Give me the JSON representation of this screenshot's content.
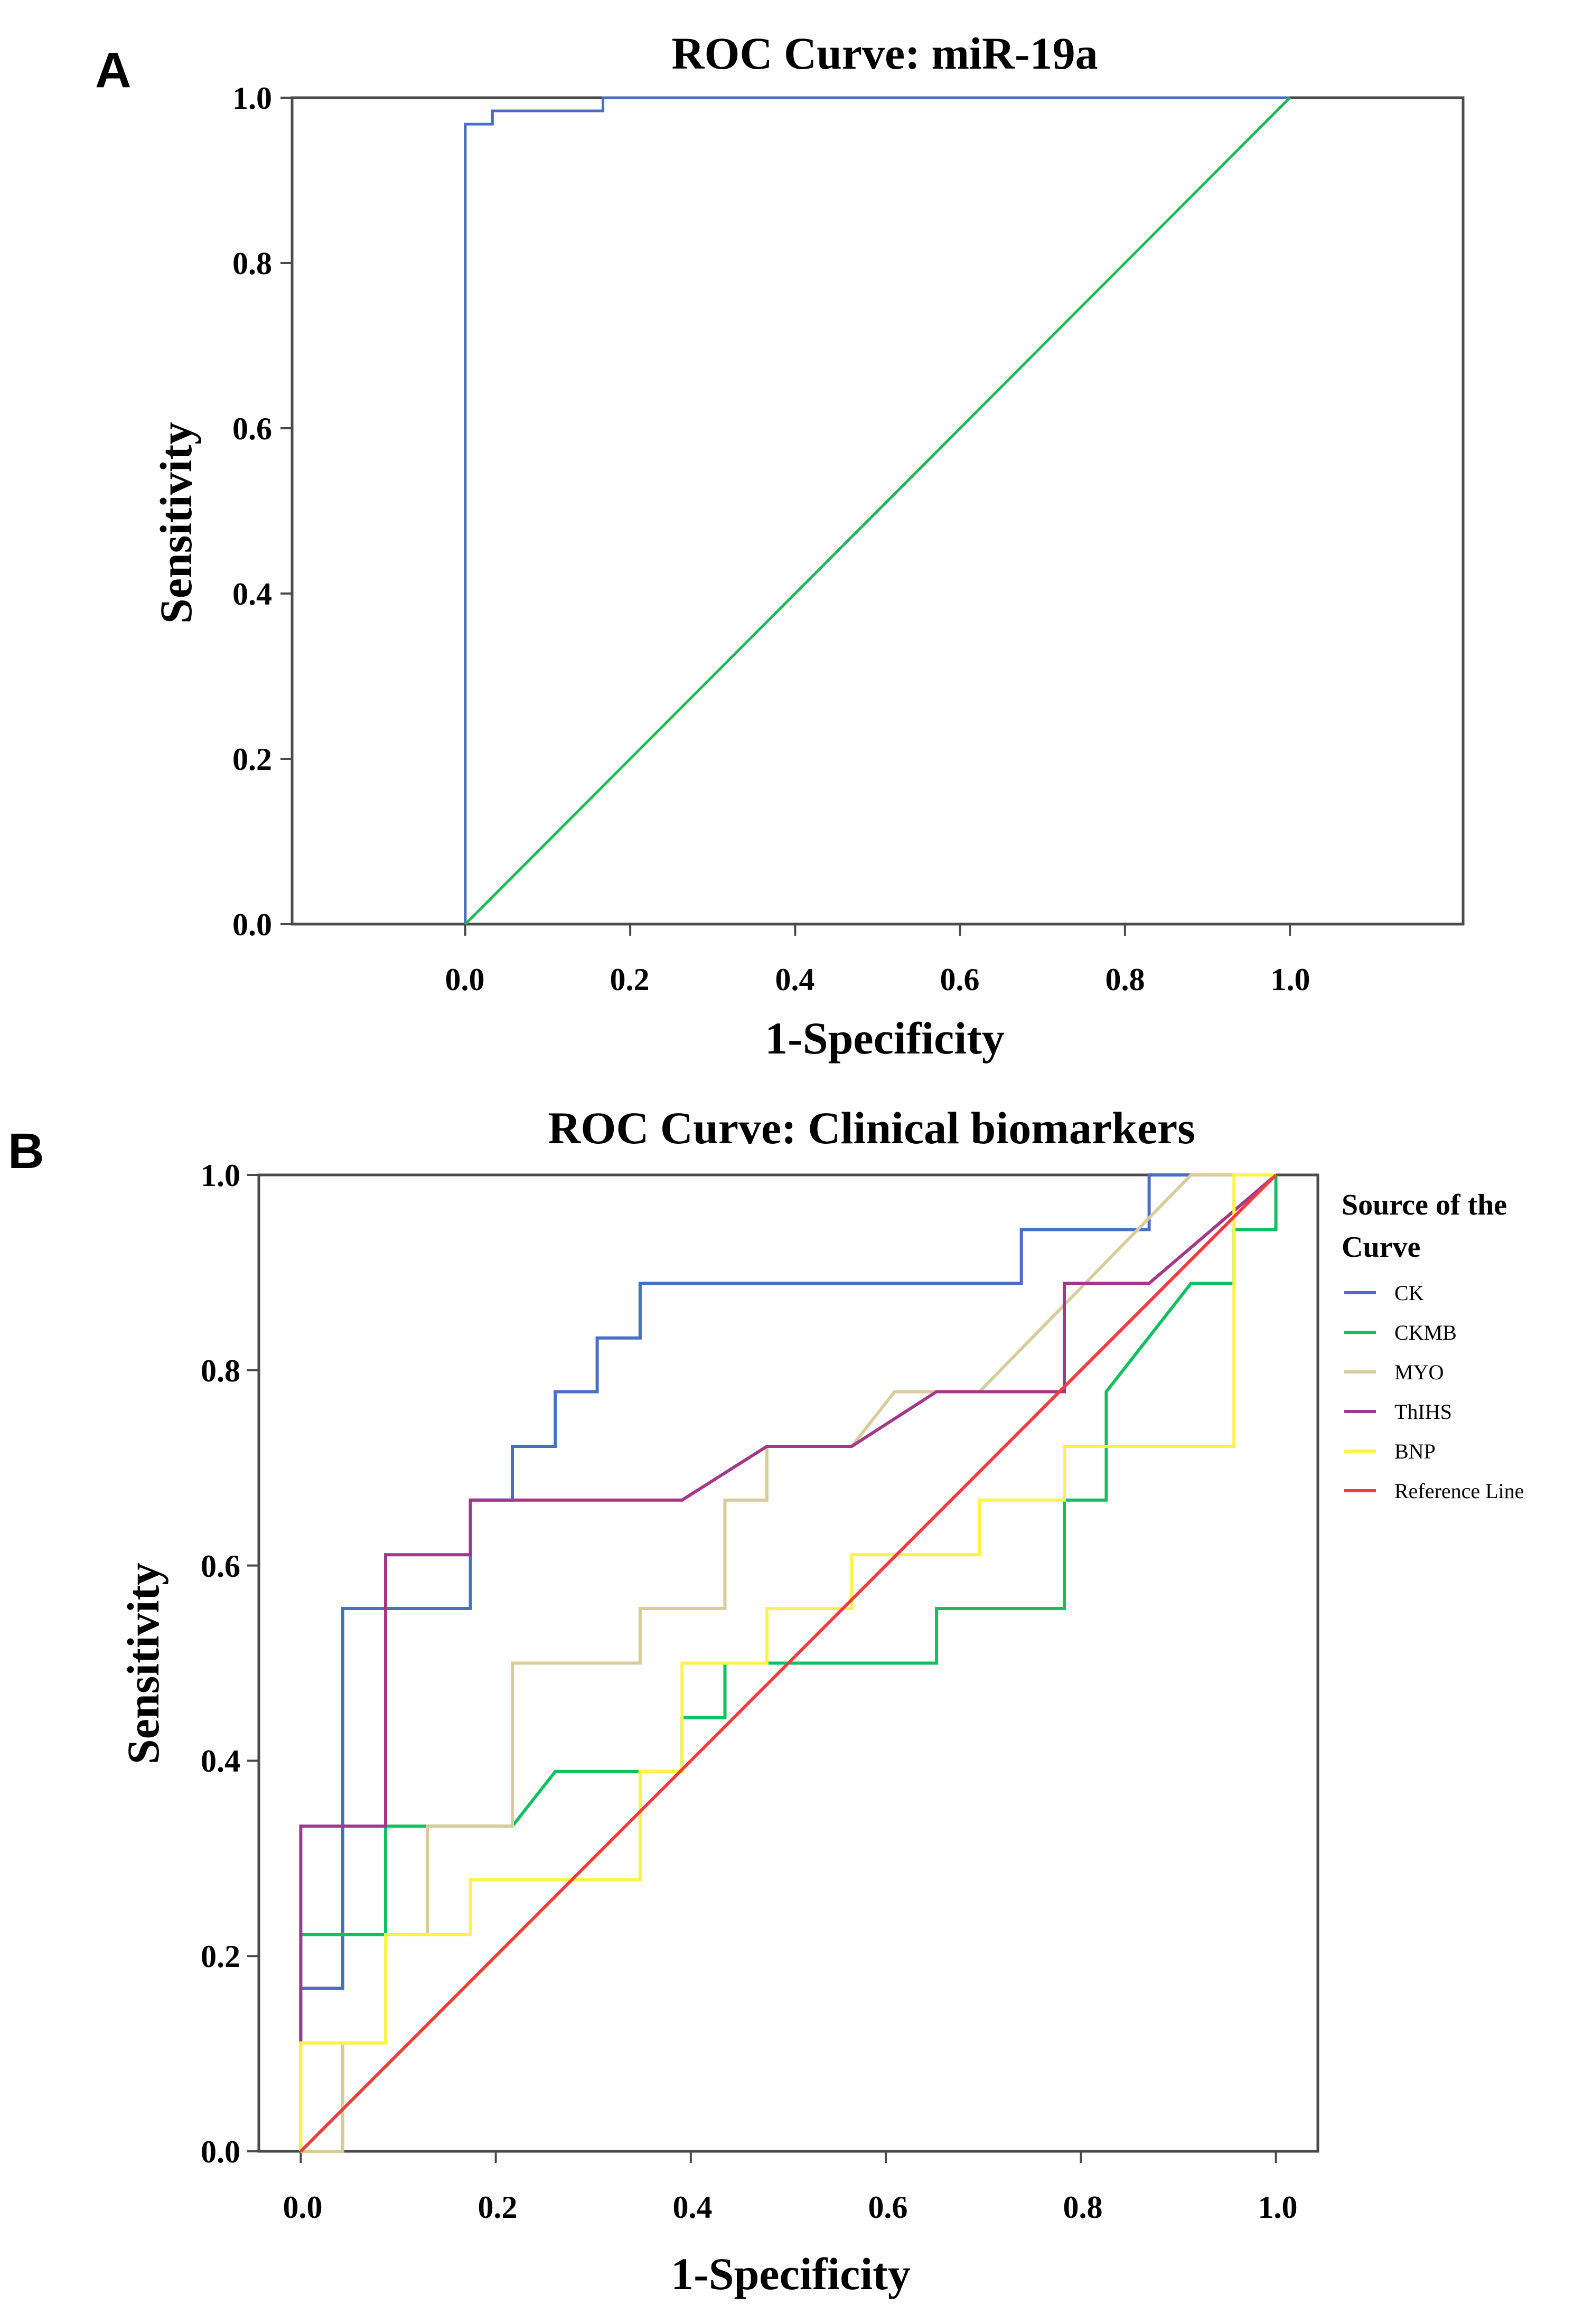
{
  "chart_data": [
    {
      "panel_label": "A",
      "type": "line",
      "title": "ROC Curve: miR-19a",
      "xlabel": "1-Specificity",
      "ylabel": "Sensitivity",
      "xlim": [
        -0.21,
        1.21
      ],
      "ylim": [
        0,
        1
      ],
      "xticks": [
        "0.0",
        "0.2",
        "0.4",
        "0.6",
        "0.8",
        "1.0"
      ],
      "yticks": [
        "0.0",
        "0.2",
        "0.4",
        "0.6",
        "0.8",
        "1.0"
      ],
      "grid": false,
      "legend": false,
      "series": [
        {
          "color": "#4a6fc2",
          "points": [
            [
              0,
              0
            ],
            [
              0,
              0.968
            ],
            [
              0.033,
              0.968
            ],
            [
              0.033,
              0.984
            ],
            [
              0.167,
              0.984
            ],
            [
              0.167,
              1
            ],
            [
              1,
              1
            ]
          ]
        },
        {
          "color": "#1db954",
          "points": [
            [
              0,
              0
            ],
            [
              1,
              1
            ]
          ]
        }
      ]
    },
    {
      "panel_label": "B",
      "type": "line",
      "title": "ROC Curve: Clinical biomarkers",
      "xlabel": "1-Specificity",
      "ylabel": "Sensitivity",
      "xlim": [
        -0.043,
        1.043
      ],
      "ylim": [
        0,
        1
      ],
      "xticks": [
        "0.0",
        "0.2",
        "0.4",
        "0.6",
        "0.8",
        "1.0"
      ],
      "yticks": [
        "0.0",
        "0.2",
        "0.4",
        "0.6",
        "0.8",
        "1.0"
      ],
      "grid": false,
      "legend_placement": "right",
      "legend_title": "Source of the Curve",
      "series": [
        {
          "name": "CK",
          "color": "#4a6fc2",
          "points": [
            [
              0,
              0
            ],
            [
              0,
              0.167
            ],
            [
              0.043,
              0.167
            ],
            [
              0.043,
              0.556
            ],
            [
              0.174,
              0.556
            ],
            [
              0.174,
              0.667
            ],
            [
              0.217,
              0.667
            ],
            [
              0.217,
              0.722
            ],
            [
              0.261,
              0.722
            ],
            [
              0.261,
              0.778
            ],
            [
              0.304,
              0.778
            ],
            [
              0.304,
              0.833
            ],
            [
              0.348,
              0.833
            ],
            [
              0.348,
              0.889
            ],
            [
              0.739,
              0.889
            ],
            [
              0.739,
              0.944
            ],
            [
              0.87,
              0.944
            ],
            [
              0.87,
              1
            ],
            [
              1,
              1
            ]
          ]
        },
        {
          "name": "CKMB",
          "color": "#10c060",
          "points": [
            [
              0,
              0
            ],
            [
              0,
              0.222
            ],
            [
              0.087,
              0.222
            ],
            [
              0.087,
              0.333
            ],
            [
              0.217,
              0.333
            ],
            [
              0.261,
              0.389
            ],
            [
              0.391,
              0.389
            ],
            [
              0.391,
              0.444
            ],
            [
              0.435,
              0.444
            ],
            [
              0.435,
              0.5
            ],
            [
              0.652,
              0.5
            ],
            [
              0.652,
              0.556
            ],
            [
              0.783,
              0.556
            ],
            [
              0.783,
              0.667
            ],
            [
              0.826,
              0.667
            ],
            [
              0.826,
              0.778
            ],
            [
              0.913,
              0.889
            ],
            [
              0.957,
              0.889
            ],
            [
              0.957,
              0.944
            ],
            [
              1,
              0.944
            ],
            [
              1,
              1
            ]
          ]
        },
        {
          "name": "MYO",
          "color": "#d9cc9c",
          "points": [
            [
              0,
              0
            ],
            [
              0.043,
              0
            ],
            [
              0.043,
              0.111
            ],
            [
              0.087,
              0.111
            ],
            [
              0.087,
              0.222
            ],
            [
              0.13,
              0.222
            ],
            [
              0.13,
              0.333
            ],
            [
              0.217,
              0.333
            ],
            [
              0.217,
              0.5
            ],
            [
              0.348,
              0.5
            ],
            [
              0.348,
              0.556
            ],
            [
              0.435,
              0.556
            ],
            [
              0.435,
              0.667
            ],
            [
              0.478,
              0.667
            ],
            [
              0.478,
              0.722
            ],
            [
              0.565,
              0.722
            ],
            [
              0.609,
              0.778
            ],
            [
              0.696,
              0.778
            ],
            [
              0.913,
              1
            ],
            [
              1,
              1
            ]
          ]
        },
        {
          "name": "ThIHS",
          "color": "#a4378a",
          "points": [
            [
              0,
              0.111
            ],
            [
              0,
              0.333
            ],
            [
              0.087,
              0.333
            ],
            [
              0.087,
              0.611
            ],
            [
              0.174,
              0.611
            ],
            [
              0.174,
              0.667
            ],
            [
              0.391,
              0.667
            ],
            [
              0.478,
              0.722
            ],
            [
              0.565,
              0.722
            ],
            [
              0.652,
              0.778
            ],
            [
              0.783,
              0.778
            ],
            [
              0.783,
              0.889
            ],
            [
              0.87,
              0.889
            ],
            [
              1,
              1
            ]
          ]
        },
        {
          "name": "BNP",
          "color": "#fff34a",
          "points": [
            [
              0,
              0
            ],
            [
              0,
              0.111
            ],
            [
              0.087,
              0.111
            ],
            [
              0.087,
              0.222
            ],
            [
              0.174,
              0.222
            ],
            [
              0.174,
              0.278
            ],
            [
              0.348,
              0.278
            ],
            [
              0.348,
              0.389
            ],
            [
              0.391,
              0.389
            ],
            [
              0.391,
              0.5
            ],
            [
              0.478,
              0.5
            ],
            [
              0.478,
              0.556
            ],
            [
              0.565,
              0.556
            ],
            [
              0.565,
              0.611
            ],
            [
              0.696,
              0.611
            ],
            [
              0.696,
              0.667
            ],
            [
              0.783,
              0.667
            ],
            [
              0.783,
              0.722
            ],
            [
              0.957,
              0.722
            ],
            [
              0.957,
              1
            ],
            [
              1,
              1
            ]
          ]
        },
        {
          "name": "Reference Line",
          "color": "#f03c3c",
          "points": [
            [
              0,
              0
            ],
            [
              1,
              1
            ]
          ]
        }
      ]
    }
  ]
}
